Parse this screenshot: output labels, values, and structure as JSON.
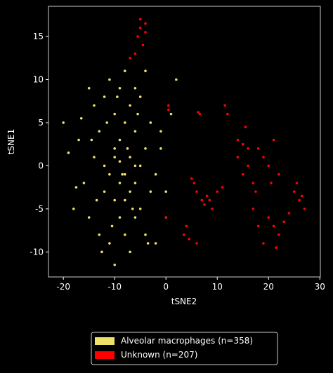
{
  "chart_data": {
    "type": "scatter",
    "xlabel": "tSNE2",
    "ylabel": "tSNE1",
    "xlim": [
      -22.9,
      30.1
    ],
    "ylim": [
      -12.9,
      18.5
    ],
    "xticks": [
      -20,
      -10,
      0,
      10,
      20,
      30
    ],
    "yticks": [
      -10,
      -5,
      0,
      5,
      10,
      15
    ],
    "legend": "bottom",
    "series": [
      {
        "name": "Alveolar macrophages (n=358)",
        "color": "#f0e068",
        "x": [
          -20,
          -19,
          -18,
          -17,
          -16,
          -15,
          -15,
          -14,
          -14,
          -13,
          -13,
          -12,
          -12,
          -12,
          -11,
          -11,
          -11,
          -10,
          -10,
          -10,
          -10,
          -9,
          -9,
          -9,
          -9,
          -9,
          -8,
          -8,
          -8,
          -8,
          -8,
          -7,
          -7,
          -7,
          -7,
          -6,
          -6,
          -6,
          -6,
          -5,
          -5,
          -5,
          -4,
          -4,
          -4,
          -3,
          -3,
          -2,
          -2,
          -1,
          -1,
          0,
          0,
          1,
          2,
          -14.5,
          -13.5,
          -11.5,
          -10.5,
          -9.5,
          -8.5,
          -7.5,
          -6.5,
          -5.5,
          -3.5,
          -16.5,
          -17.5,
          -12.5,
          -10,
          -6
        ],
        "y": [
          5,
          1.5,
          -5,
          3,
          -2,
          9,
          -6,
          7,
          1,
          -8,
          4,
          8,
          -3,
          0,
          10,
          -1,
          -9,
          6,
          2,
          -4,
          -11.5,
          9,
          3,
          -2,
          -6,
          0.5,
          5,
          -1,
          -8,
          11,
          -4,
          7,
          1,
          -3,
          -10,
          4,
          -2,
          -6,
          9,
          8,
          0,
          -5,
          2,
          -8,
          11,
          5,
          -3,
          -9,
          -1,
          4,
          2,
          -3,
          -6,
          6,
          10,
          3,
          -4,
          5,
          -7,
          8,
          -1,
          2,
          -5,
          6,
          -9,
          5.5,
          -2.5,
          -10,
          1,
          0
        ]
      },
      {
        "name": "Unknown (n=207)",
        "color": "#ff0000",
        "x": [
          -5,
          -5,
          -4,
          -4,
          -6,
          -7,
          -4.5,
          -5.5,
          0.5,
          0.5,
          6.3,
          6.6,
          5,
          6,
          7,
          8,
          9,
          10,
          11,
          7.5,
          8.5,
          5.5,
          3.5,
          4,
          4.5,
          6,
          11.5,
          12,
          14,
          15,
          15.5,
          16,
          14,
          15,
          16,
          17,
          18,
          19,
          20,
          21,
          22,
          17.5,
          20.5,
          17,
          18,
          19,
          20,
          21,
          22,
          23,
          24,
          21.5,
          25,
          26,
          27,
          25.5,
          26.5,
          0
        ],
        "y": [
          17,
          16,
          16.5,
          15.5,
          13,
          12.5,
          14,
          15,
          7,
          6.5,
          6.2,
          6,
          -1.5,
          -3,
          -4,
          -3.5,
          -5,
          -3,
          -2.5,
          -4.5,
          -4,
          -2,
          -8,
          -7,
          -8.5,
          -9,
          7,
          6,
          3,
          2.5,
          4.5,
          2,
          1,
          -1,
          0,
          -2,
          2,
          1,
          0,
          3,
          -1,
          -3,
          -2,
          -5,
          -7,
          -9,
          -6,
          -7,
          -8,
          -6.5,
          -5.5,
          -9.5,
          -3,
          -4,
          -5,
          -2,
          -3.5,
          -6
        ]
      }
    ]
  }
}
